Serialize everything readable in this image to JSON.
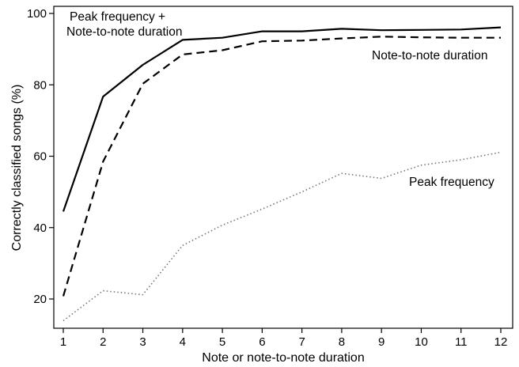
{
  "chart_data": {
    "type": "line",
    "title": "",
    "xlabel": "Note or  note-to-note duration",
    "ylabel": "Correctly classified songs (%)",
    "xlim": [
      1,
      12
    ],
    "ylim": [
      15,
      100
    ],
    "xticks": [
      1,
      2,
      3,
      4,
      5,
      6,
      7,
      8,
      9,
      10,
      11,
      12
    ],
    "yticks": [
      20,
      40,
      60,
      80,
      100
    ],
    "grid": false,
    "legend": "inline labels",
    "x": [
      1,
      2,
      3,
      4,
      5,
      6,
      7,
      8,
      9,
      10,
      11,
      12
    ],
    "series": [
      {
        "name_lines": [
          "Peak frequency +",
          "Note-to-note duration"
        ],
        "style": "solid",
        "values": [
          44.5,
          76.7,
          85.6,
          92.6,
          93.2,
          95.0,
          95.0,
          95.7,
          95.3,
          95.4,
          95.5,
          96.1
        ]
      },
      {
        "name_lines": [
          "Note-to-note duration"
        ],
        "style": "dashed",
        "values": [
          20.8,
          58.5,
          80.3,
          88.5,
          89.7,
          92.2,
          92.4,
          93.0,
          93.5,
          93.3,
          93.2,
          93.2
        ]
      },
      {
        "name_lines": [
          "Peak frequency"
        ],
        "style": "dotted",
        "values": [
          13.9,
          22.3,
          21.2,
          35.0,
          40.7,
          45.2,
          50.0,
          55.2,
          53.8,
          57.5,
          59.0,
          61.1
        ]
      }
    ]
  }
}
